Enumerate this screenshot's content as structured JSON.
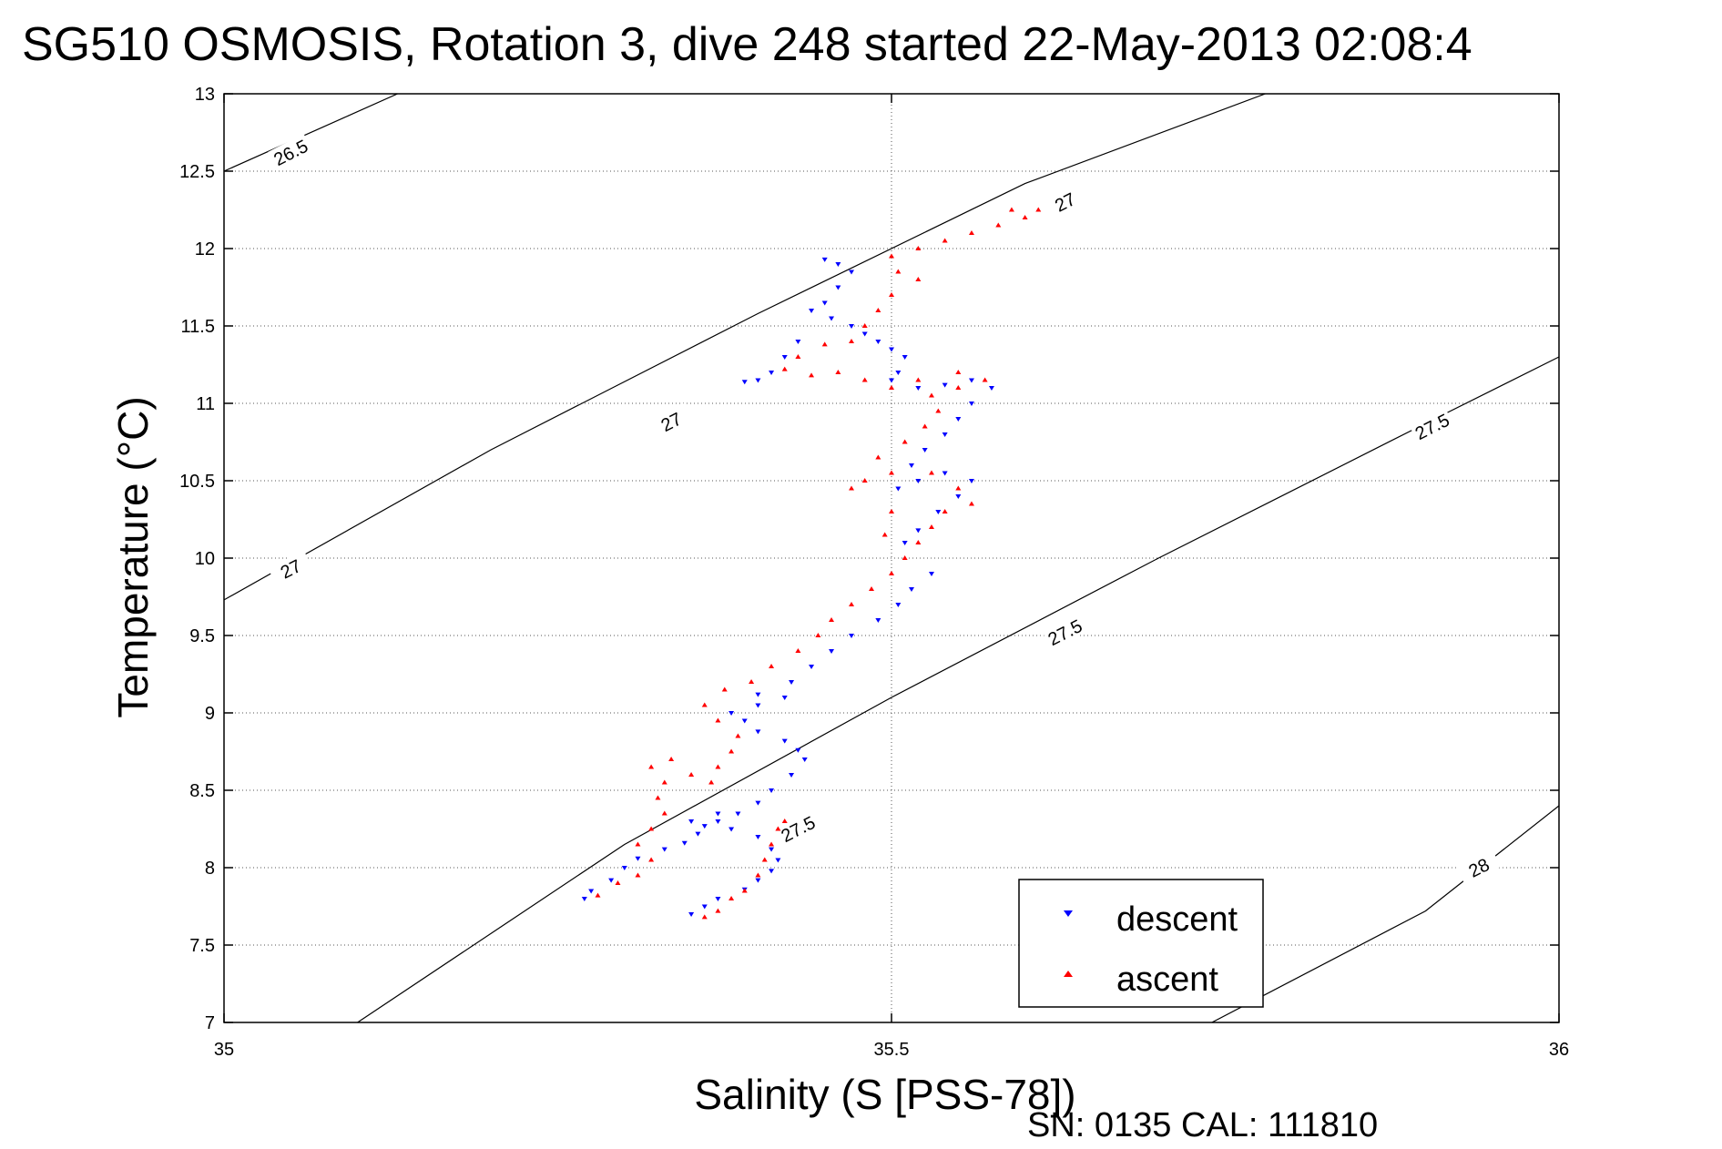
{
  "chart_data": {
    "type": "scatter",
    "title": "SG510 OSMOSIS, Rotation 3, dive 248 started 22-May-2013 02:08:4",
    "xlabel": "Salinity (S [PSS-78])",
    "ylabel": "Temperature (°C)",
    "xlim": [
      35,
      36
    ],
    "ylim": [
      7,
      13
    ],
    "xticks": [
      "35",
      "35.5",
      "36"
    ],
    "yticks": [
      "7",
      "7.5",
      "8",
      "8.5",
      "9",
      "9.5",
      "10",
      "10.5",
      "11",
      "11.5",
      "12",
      "12.5",
      "13"
    ],
    "grid": true,
    "legend_position": "bottom-right",
    "annotation": "SN: 0135  CAL: 111810",
    "contours": [
      {
        "label": "26.5",
        "points": [
          [
            35.0,
            12.5
          ],
          [
            35.13,
            13.0
          ]
        ],
        "label_at": [
          35.05,
          12.62
        ]
      },
      {
        "label": "27",
        "points": [
          [
            35.0,
            9.73
          ],
          [
            35.2,
            10.7
          ],
          [
            35.4,
            11.58
          ],
          [
            35.6,
            12.42
          ],
          [
            35.78,
            13.0
          ]
        ],
        "label_at": [
          35.05,
          9.93
        ]
      },
      {
        "label": "27",
        "points": [],
        "label_at": [
          35.335,
          10.88
        ]
      },
      {
        "label": "27",
        "points": [],
        "label_at": [
          35.63,
          12.3
        ]
      },
      {
        "label": "27.5",
        "points": [
          [
            35.1,
            7.0
          ],
          [
            35.3,
            8.15
          ],
          [
            35.5,
            9.1
          ],
          [
            35.7,
            10.0
          ],
          [
            35.9,
            10.87
          ],
          [
            36.0,
            11.3
          ]
        ],
        "label_at": [
          35.43,
          8.25
        ]
      },
      {
        "label": "27.5",
        "points": [],
        "label_at": [
          35.63,
          9.52
        ]
      },
      {
        "label": "27.5",
        "points": [],
        "label_at": [
          35.905,
          10.85
        ]
      },
      {
        "label": "28",
        "points": [
          [
            35.74,
            7.0
          ],
          [
            35.9,
            7.72
          ],
          [
            36.0,
            8.4
          ]
        ],
        "label_at": [
          35.94,
          8.0
        ]
      }
    ],
    "series": [
      {
        "name": "descent",
        "color": "#0000ff",
        "marker": "triangle-down",
        "points": [
          [
            35.27,
            7.8
          ],
          [
            35.275,
            7.85
          ],
          [
            35.29,
            7.92
          ],
          [
            35.3,
            8.0
          ],
          [
            35.31,
            8.06
          ],
          [
            35.33,
            8.12
          ],
          [
            35.345,
            8.16
          ],
          [
            35.355,
            8.22
          ],
          [
            35.37,
            8.3
          ],
          [
            35.385,
            8.35
          ],
          [
            35.4,
            8.42
          ],
          [
            35.41,
            8.5
          ],
          [
            35.425,
            8.6
          ],
          [
            35.435,
            8.7
          ],
          [
            35.43,
            8.76
          ],
          [
            35.42,
            8.82
          ],
          [
            35.4,
            8.88
          ],
          [
            35.39,
            8.95
          ],
          [
            35.38,
            9.0
          ],
          [
            35.4,
            9.05
          ],
          [
            35.42,
            9.1
          ],
          [
            35.4,
            9.12
          ],
          [
            35.425,
            9.2
          ],
          [
            35.44,
            9.3
          ],
          [
            35.455,
            9.4
          ],
          [
            35.47,
            9.5
          ],
          [
            35.49,
            9.6
          ],
          [
            35.505,
            9.7
          ],
          [
            35.515,
            9.8
          ],
          [
            35.53,
            9.9
          ],
          [
            35.51,
            10.1
          ],
          [
            35.52,
            10.18
          ],
          [
            35.535,
            10.3
          ],
          [
            35.55,
            10.4
          ],
          [
            35.56,
            10.5
          ],
          [
            35.54,
            10.55
          ],
          [
            35.52,
            10.5
          ],
          [
            35.505,
            10.45
          ],
          [
            35.515,
            10.6
          ],
          [
            35.525,
            10.7
          ],
          [
            35.54,
            10.8
          ],
          [
            35.55,
            10.9
          ],
          [
            35.56,
            11.0
          ],
          [
            35.575,
            11.1
          ],
          [
            35.56,
            11.15
          ],
          [
            35.54,
            11.12
          ],
          [
            35.52,
            11.1
          ],
          [
            35.5,
            11.15
          ],
          [
            35.505,
            11.2
          ],
          [
            35.51,
            11.3
          ],
          [
            35.5,
            11.35
          ],
          [
            35.49,
            11.4
          ],
          [
            35.48,
            11.45
          ],
          [
            35.47,
            11.5
          ],
          [
            35.455,
            11.55
          ],
          [
            35.45,
            11.65
          ],
          [
            35.46,
            11.75
          ],
          [
            35.47,
            11.85
          ],
          [
            35.46,
            11.9
          ],
          [
            35.45,
            11.93
          ],
          [
            35.44,
            11.6
          ],
          [
            35.43,
            11.4
          ],
          [
            35.42,
            11.3
          ],
          [
            35.41,
            11.2
          ],
          [
            35.4,
            11.15
          ],
          [
            35.39,
            11.14
          ],
          [
            35.37,
            8.35
          ],
          [
            35.35,
            8.3
          ],
          [
            35.36,
            8.27
          ],
          [
            35.38,
            8.25
          ],
          [
            35.4,
            8.2
          ],
          [
            35.41,
            8.12
          ],
          [
            35.415,
            8.05
          ],
          [
            35.41,
            7.98
          ],
          [
            35.4,
            7.92
          ],
          [
            35.39,
            7.86
          ],
          [
            35.37,
            7.8
          ],
          [
            35.36,
            7.75
          ],
          [
            35.35,
            7.7
          ]
        ]
      },
      {
        "name": "ascent",
        "color": "#ff0000",
        "marker": "triangle-up",
        "points": [
          [
            35.28,
            7.82
          ],
          [
            35.295,
            7.9
          ],
          [
            35.31,
            7.95
          ],
          [
            35.32,
            8.05
          ],
          [
            35.31,
            8.15
          ],
          [
            35.32,
            8.25
          ],
          [
            35.33,
            8.35
          ],
          [
            35.325,
            8.45
          ],
          [
            35.33,
            8.55
          ],
          [
            35.32,
            8.65
          ],
          [
            35.335,
            8.7
          ],
          [
            35.35,
            8.6
          ],
          [
            35.365,
            8.55
          ],
          [
            35.37,
            8.65
          ],
          [
            35.38,
            8.75
          ],
          [
            35.385,
            8.85
          ],
          [
            35.37,
            8.95
          ],
          [
            35.36,
            9.05
          ],
          [
            35.375,
            9.15
          ],
          [
            35.395,
            9.2
          ],
          [
            35.41,
            9.3
          ],
          [
            35.43,
            9.4
          ],
          [
            35.445,
            9.5
          ],
          [
            35.455,
            9.6
          ],
          [
            35.47,
            9.7
          ],
          [
            35.485,
            9.8
          ],
          [
            35.5,
            9.9
          ],
          [
            35.51,
            10.0
          ],
          [
            35.52,
            10.1
          ],
          [
            35.53,
            10.2
          ],
          [
            35.54,
            10.3
          ],
          [
            35.56,
            10.35
          ],
          [
            35.55,
            10.45
          ],
          [
            35.53,
            10.55
          ],
          [
            35.5,
            10.55
          ],
          [
            35.48,
            10.5
          ],
          [
            35.47,
            10.45
          ],
          [
            35.49,
            10.65
          ],
          [
            35.51,
            10.75
          ],
          [
            35.525,
            10.85
          ],
          [
            35.535,
            10.95
          ],
          [
            35.53,
            11.05
          ],
          [
            35.55,
            11.1
          ],
          [
            35.57,
            11.15
          ],
          [
            35.55,
            11.2
          ],
          [
            35.52,
            11.15
          ],
          [
            35.5,
            11.1
          ],
          [
            35.48,
            11.15
          ],
          [
            35.46,
            11.2
          ],
          [
            35.44,
            11.18
          ],
          [
            35.42,
            11.22
          ],
          [
            35.43,
            11.3
          ],
          [
            35.45,
            11.38
          ],
          [
            35.47,
            11.4
          ],
          [
            35.48,
            11.5
          ],
          [
            35.49,
            11.6
          ],
          [
            35.5,
            11.7
          ],
          [
            35.52,
            11.8
          ],
          [
            35.505,
            11.85
          ],
          [
            35.5,
            11.95
          ],
          [
            35.52,
            12.0
          ],
          [
            35.54,
            12.05
          ],
          [
            35.56,
            12.1
          ],
          [
            35.58,
            12.15
          ],
          [
            35.6,
            12.2
          ],
          [
            35.61,
            12.25
          ],
          [
            35.59,
            12.25
          ],
          [
            35.5,
            10.3
          ],
          [
            35.495,
            10.15
          ],
          [
            35.36,
            7.68
          ],
          [
            35.37,
            7.72
          ],
          [
            35.38,
            7.8
          ],
          [
            35.39,
            7.85
          ],
          [
            35.4,
            7.95
          ],
          [
            35.405,
            8.05
          ],
          [
            35.41,
            8.15
          ],
          [
            35.415,
            8.25
          ],
          [
            35.42,
            8.3
          ]
        ]
      }
    ]
  }
}
